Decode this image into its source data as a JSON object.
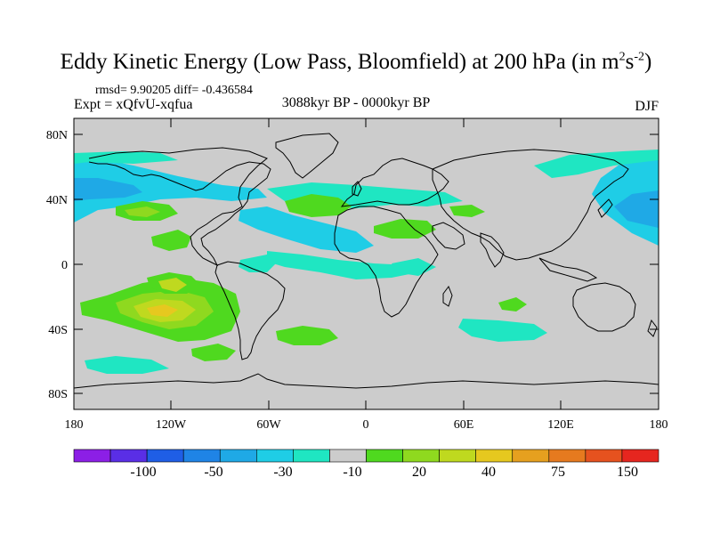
{
  "title": {
    "main": "Eddy Kinetic Energy (Low Pass, Bloomfield) at 200 hPa (in m",
    "sup1": "2",
    "s": "s",
    "sup2": "-2",
    "close": ")"
  },
  "stats_line": "rmsd= 9.90205  diff= -0.436584",
  "experiment": "Expt = xQfvU-xqfua",
  "period": "3088kyr BP - 0000kyr BP",
  "season": "DJF",
  "axes": {
    "lat_labels": [
      "80N",
      "40N",
      "0",
      "40S",
      "80S"
    ],
    "lon_labels": [
      "180",
      "120W",
      "60W",
      "0",
      "60E",
      "120E",
      "180"
    ]
  },
  "colorbar": {
    "colors": [
      "#8c1fe6",
      "#5a2ee6",
      "#1f5ee6",
      "#1f84e6",
      "#1fa9e6",
      "#1fcde6",
      "#1fe6c2",
      "#cccccc",
      "#4fd91f",
      "#8fd91f",
      "#bfd91f",
      "#e6c81f",
      "#e6a01f",
      "#e67a1f",
      "#e6521f",
      "#e6261f"
    ],
    "tick_labels": [
      "-100",
      "-50",
      "-30",
      "-10",
      "20",
      "40",
      "75",
      "150"
    ]
  },
  "legend_colors": {
    "neg_30": "#1fa9e6",
    "neg_20": "#1fcde6",
    "neg_10": "#1fe6c2",
    "zero": "#cccccc",
    "pos_10": "#4fd91f",
    "pos_20": "#8fd91f",
    "pos_30": "#bfd91f",
    "pos_40": "#e6c81f"
  }
}
